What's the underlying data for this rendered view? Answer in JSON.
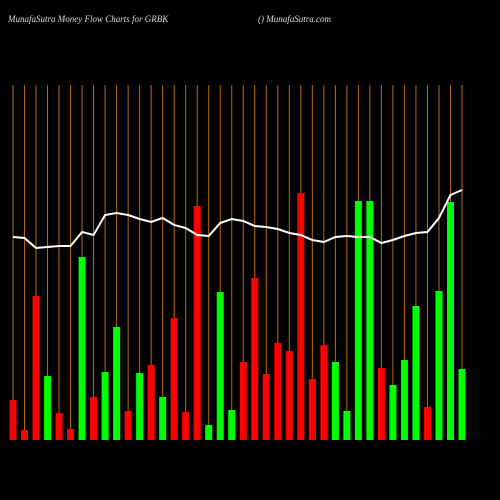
{
  "chart_data": {
    "type": "bar",
    "title": "MunafaSutra  Money Flow  Charts for GRBK",
    "subtitle": "() MunafaSutra.com",
    "categories": [
      null,
      null,
      null,
      null,
      null,
      null,
      null,
      null,
      null,
      null,
      null,
      null,
      null,
      null,
      null,
      null,
      null,
      null,
      null,
      null,
      null,
      null,
      null,
      null,
      null,
      null,
      null,
      null,
      null,
      null,
      null,
      null,
      null,
      null,
      null,
      null,
      null,
      null,
      null,
      null
    ],
    "values": [
      40,
      10,
      144,
      64,
      27,
      11,
      183,
      43,
      68,
      113,
      29,
      67,
      75,
      43,
      122,
      28,
      234,
      15,
      148,
      30,
      78,
      162,
      66,
      97,
      89,
      247,
      61,
      95,
      78,
      29,
      239,
      239,
      72,
      55,
      80,
      134,
      33,
      149,
      238,
      71
    ],
    "colors": [
      "#ff0000",
      "#ff0000",
      "#ff0000",
      "#00ff00",
      "#ff0000",
      "#ff0000",
      "#00ff00",
      "#ff0000",
      "#00ff00",
      "#00ff00",
      "#ff0000",
      "#00ff00",
      "#ff0000",
      "#00ff00",
      "#ff0000",
      "#ff0000",
      "#ff0000",
      "#00ff00",
      "#00ff00",
      "#00ff00",
      "#ff0000",
      "#ff0000",
      "#ff0000",
      "#ff0000",
      "#ff0000",
      "#ff0000",
      "#ff0000",
      "#ff0000",
      "#00ff00",
      "#00ff00",
      "#00ff00",
      "#00ff00",
      "#ff0000",
      "#00ff00",
      "#00ff00",
      "#00ff00",
      "#ff0000",
      "#00ff00",
      "#00ff00",
      "#00ff00"
    ],
    "line_values": [
      203,
      202,
      192,
      193,
      194,
      194,
      208,
      205,
      225,
      227,
      225,
      221,
      218,
      222,
      215,
      212,
      205,
      204,
      217,
      221,
      219,
      214,
      213,
      211,
      207,
      205,
      200,
      198,
      203,
      204,
      203,
      203,
      197,
      200,
      204,
      207,
      208,
      222,
      245,
      250
    ],
    "line_color": "#ffffff",
    "grid_color": "#b86a10",
    "ylim": [
      0,
      355
    ]
  }
}
